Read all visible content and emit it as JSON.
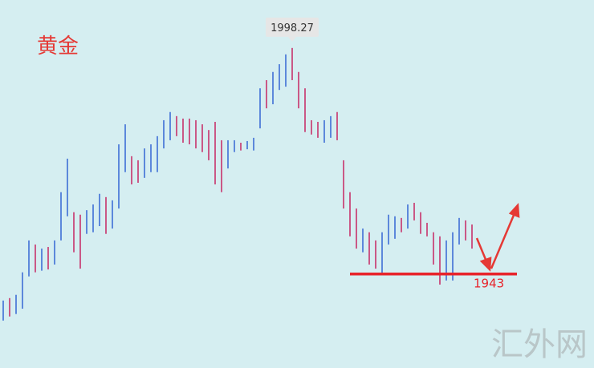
{
  "chart_data": {
    "type": "range-bar",
    "title": "黄金",
    "high": [
      1936.5,
      1937.1,
      1937.9,
      1943.4,
      1951.2,
      1950.2,
      1949.2,
      1949.6,
      1951.2,
      1963.0,
      1971.2,
      1958.1,
      1957.5,
      1958.6,
      1960.0,
      1962.6,
      1961.8,
      1961.0,
      1974.7,
      1979.6,
      1971.8,
      1970.8,
      1973.7,
      1974.7,
      1976.7,
      1980.6,
      1982.6,
      1981.6,
      1981.0,
      1981.0,
      1980.6,
      1979.6,
      1978.2,
      1980.2,
      1975.7,
      1975.7,
      1975.7,
      1975.1,
      1975.5,
      1976.3,
      1988.4,
      1990.4,
      1992.4,
      1994.3,
      1996.7,
      1998.27,
      1992.4,
      1988.4,
      1980.6,
      1980.2,
      1980.6,
      1981.6,
      1982.6,
      1970.8,
      1963.0,
      1959.0,
      1954.1,
      1953.2,
      1951.2,
      1953.2,
      1957.5,
      1957.1,
      1956.7,
      1960.0,
      1960.4,
      1958.1,
      1955.5,
      1953.2,
      1952.2,
      1951.2,
      1953.2,
      1956.7,
      1956.1,
      1955.1
    ],
    "low": [
      1931.6,
      1932.6,
      1933.2,
      1934.5,
      1942.4,
      1943.4,
      1943.8,
      1944.1,
      1945.3,
      1951.2,
      1957.1,
      1948.3,
      1944.3,
      1952.8,
      1953.2,
      1954.7,
      1952.8,
      1954.1,
      1959.0,
      1967.9,
      1964.9,
      1965.3,
      1966.5,
      1967.9,
      1967.9,
      1973.7,
      1975.7,
      1976.7,
      1975.1,
      1974.7,
      1973.7,
      1972.8,
      1970.8,
      1964.9,
      1963.0,
      1968.8,
      1972.8,
      1973.2,
      1973.5,
      1973.2,
      1978.6,
      1983.5,
      1984.5,
      1988.0,
      1988.8,
      1990.4,
      1983.5,
      1977.7,
      1977.1,
      1976.3,
      1975.1,
      1976.3,
      1975.7,
      1959.0,
      1952.2,
      1949.2,
      1948.3,
      1945.3,
      1944.3,
      1943.0,
      1950.2,
      1951.6,
      1953.2,
      1954.1,
      1956.1,
      1952.8,
      1952.2,
      1945.3,
      1940.4,
      1941.4,
      1941.4,
      1950.2,
      1951.2,
      1949.2
    ],
    "up": [
      true,
      false,
      true,
      true,
      true,
      false,
      true,
      false,
      true,
      true,
      true,
      false,
      false,
      true,
      true,
      true,
      false,
      true,
      true,
      true,
      false,
      false,
      true,
      true,
      true,
      true,
      true,
      false,
      false,
      false,
      false,
      false,
      false,
      false,
      false,
      true,
      true,
      false,
      true,
      true,
      true,
      false,
      true,
      true,
      true,
      false,
      false,
      false,
      false,
      false,
      true,
      true,
      false,
      false,
      false,
      false,
      true,
      false,
      false,
      true,
      true,
      true,
      false,
      true,
      false,
      false,
      false,
      false,
      false,
      true,
      true,
      true,
      false,
      false
    ],
    "up_color": "#3f6fd6",
    "down_color": "#c8326c",
    "ylim": [
      1920,
      2010
    ],
    "peak": 1998.27,
    "support_level": 1943,
    "support_color": "#e8232a"
  },
  "watermark": "汇外网"
}
